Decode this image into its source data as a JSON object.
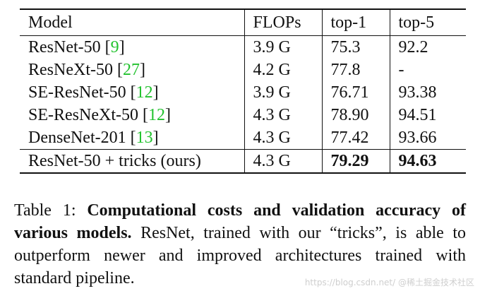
{
  "table": {
    "headers": [
      "Model",
      "FLOPs",
      "top-1",
      "top-5"
    ],
    "rows": [
      {
        "model": "ResNet-50 ",
        "cite": "9",
        "flops": "3.9 G",
        "top1": "75.3",
        "top5": "92.2",
        "bold": false
      },
      {
        "model": "ResNeXt-50 ",
        "cite": "27",
        "flops": "4.2 G",
        "top1": "77.8",
        "top5": "-",
        "bold": false
      },
      {
        "model": "SE-ResNet-50 ",
        "cite": "12",
        "flops": "3.9 G",
        "top1": "76.71",
        "top5": "93.38",
        "bold": false
      },
      {
        "model": "SE-ResNeXt-50 ",
        "cite": "12",
        "flops": "4.3 G",
        "top1": "78.90",
        "top5": "94.51",
        "bold": false
      },
      {
        "model": "DenseNet-201 ",
        "cite": "13",
        "flops": "4.3 G",
        "top1": "77.42",
        "top5": "93.66",
        "bold": false
      },
      {
        "model": "ResNet-50 + tricks (ours)",
        "cite": "",
        "flops": "4.3 G",
        "top1": "79.29",
        "top5": "94.63",
        "bold": true
      }
    ]
  },
  "caption": {
    "label": "Table 1: ",
    "bold_text": "Computational costs and validation accuracy of various models.",
    "body_text": " ResNet, trained with our “tricks”, is able to outperform newer and improved architectures trained with standard pipeline."
  },
  "watermark": "https://blog.csdn.net/ @稀土掘金技术社区",
  "colors": {
    "citation": "#22c22e",
    "text": "#111111"
  }
}
